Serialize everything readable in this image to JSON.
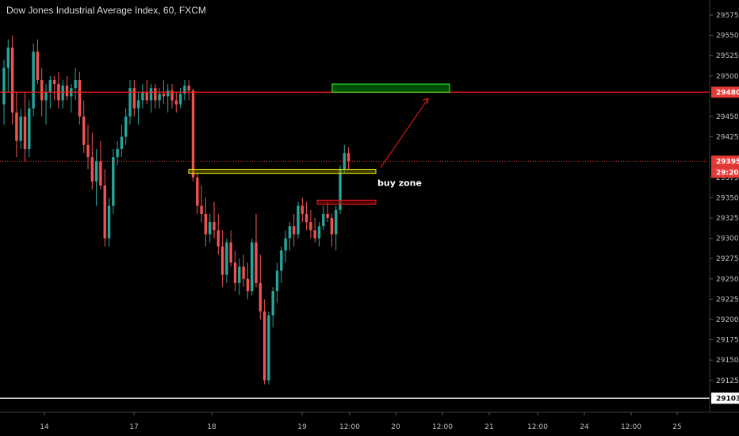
{
  "chart_title": "Dow Jones Industrial Average Index, 60, FXCM",
  "colors": {
    "background": "#000000",
    "up": "#26a69a",
    "down": "#ef5350",
    "resistance": "#ff1a1a",
    "buy_zone": "#ffff00",
    "target_box": "#00b300",
    "stop_box": "#ff1a1a",
    "support_line": "#ffffff",
    "price_badge": "#e53935",
    "axis_text": "#bfbfbf"
  },
  "annotation": {
    "buy_zone_label": "buy zone"
  },
  "badges": {
    "resistance_price": "29480",
    "current_price": "29395",
    "countdown": "29:20",
    "support_price": "29103"
  },
  "chart_data": {
    "type": "candlestick",
    "title": "Dow Jones Industrial Average Index, 60, FXCM",
    "ylim": [
      29103,
      29590
    ],
    "y_ticks": [
      29575,
      29550,
      29525,
      29500,
      29450,
      29425,
      29375,
      29350,
      29325,
      29300,
      29275,
      29250,
      29225,
      29200,
      29175,
      29150,
      29125
    ],
    "x_ticks": [
      "14",
      "17",
      "18",
      "19",
      "12:00",
      "20",
      "12:00",
      "21",
      "12:00",
      "24",
      "12:00",
      "25"
    ],
    "levels": {
      "resistance": 29480,
      "current": 29395,
      "support": 29103
    },
    "zones": {
      "target": [
        29480,
        29490
      ],
      "buy_zone": [
        29380,
        29385
      ],
      "stop": [
        29342,
        29347
      ]
    },
    "series": [
      {
        "name": "",
        "ohlc": [
          [
            29465,
            29520,
            29440,
            29510
          ],
          [
            29510,
            29545,
            29480,
            29535
          ],
          [
            29535,
            29550,
            29440,
            29455
          ],
          [
            29455,
            29480,
            29400,
            29420
          ],
          [
            29420,
            29460,
            29410,
            29450
          ],
          [
            29450,
            29480,
            29395,
            29410
          ],
          [
            29410,
            29470,
            29400,
            29460
          ],
          [
            29460,
            29540,
            29450,
            29530
          ],
          [
            29530,
            29545,
            29490,
            29495
          ],
          [
            29495,
            29510,
            29450,
            29470
          ],
          [
            29470,
            29490,
            29440,
            29480
          ],
          [
            29480,
            29500,
            29460,
            29495
          ],
          [
            29495,
            29500,
            29470,
            29490
          ],
          [
            29490,
            29505,
            29460,
            29470
          ],
          [
            29470,
            29495,
            29460,
            29488
          ],
          [
            29488,
            29500,
            29470,
            29475
          ],
          [
            29475,
            29490,
            29455,
            29485
          ],
          [
            29485,
            29510,
            29470,
            29495
          ],
          [
            29495,
            29505,
            29440,
            29450
          ],
          [
            29450,
            29470,
            29405,
            29415
          ],
          [
            29415,
            29440,
            29385,
            29400
          ],
          [
            29400,
            29430,
            29360,
            29370
          ],
          [
            29370,
            29410,
            29340,
            29395
          ],
          [
            29395,
            29420,
            29360,
            29365
          ],
          [
            29365,
            29385,
            29290,
            29300
          ],
          [
            29300,
            29350,
            29290,
            29340
          ],
          [
            29340,
            29410,
            29330,
            29400
          ],
          [
            29400,
            29420,
            29390,
            29410
          ],
          [
            29410,
            29440,
            29400,
            29425
          ],
          [
            29425,
            29460,
            29415,
            29450
          ],
          [
            29450,
            29495,
            29440,
            29485
          ],
          [
            29485,
            29495,
            29450,
            29460
          ],
          [
            29460,
            29480,
            29440,
            29470
          ],
          [
            29470,
            29490,
            29460,
            29480
          ],
          [
            29480,
            29495,
            29465,
            29470
          ],
          [
            29470,
            29490,
            29455,
            29485
          ],
          [
            29485,
            29490,
            29460,
            29470
          ],
          [
            29470,
            29485,
            29460,
            29478
          ],
          [
            29478,
            29495,
            29465,
            29475
          ],
          [
            29475,
            29490,
            29455,
            29482
          ],
          [
            29482,
            29490,
            29460,
            29470
          ],
          [
            29470,
            29480,
            29455,
            29465
          ],
          [
            29465,
            29485,
            29460,
            29478
          ],
          [
            29478,
            29495,
            29470,
            29488
          ],
          [
            29488,
            29495,
            29470,
            29482
          ],
          [
            29482,
            29484,
            29370,
            29375
          ],
          [
            29375,
            29380,
            29330,
            29340
          ],
          [
            29340,
            29365,
            29320,
            29330
          ],
          [
            29330,
            29350,
            29290,
            29305
          ],
          [
            29305,
            29330,
            29295,
            29320
          ],
          [
            29320,
            29345,
            29300,
            29310
          ],
          [
            29310,
            29330,
            29280,
            29290
          ],
          [
            29290,
            29310,
            29240,
            29255
          ],
          [
            29255,
            29300,
            29245,
            29295
          ],
          [
            29295,
            29310,
            29265,
            29270
          ],
          [
            29270,
            29285,
            29235,
            29245
          ],
          [
            29245,
            29275,
            29230,
            29265
          ],
          [
            29265,
            29280,
            29240,
            29250
          ],
          [
            29250,
            29270,
            29225,
            29235
          ],
          [
            29235,
            29300,
            29230,
            29295
          ],
          [
            29295,
            29330,
            29240,
            29245
          ],
          [
            29245,
            29280,
            29200,
            29210
          ],
          [
            29210,
            29225,
            29120,
            29125
          ],
          [
            29125,
            29210,
            29120,
            29205
          ],
          [
            29205,
            29240,
            29190,
            29235
          ],
          [
            29235,
            29270,
            29220,
            29260
          ],
          [
            29260,
            29290,
            29245,
            29285
          ],
          [
            29285,
            29310,
            29270,
            29300
          ],
          [
            29300,
            29320,
            29285,
            29315
          ],
          [
            29315,
            29330,
            29290,
            29305
          ],
          [
            29305,
            29345,
            29300,
            29340
          ],
          [
            29340,
            29350,
            29320,
            29330
          ],
          [
            29330,
            29345,
            29310,
            29320
          ],
          [
            29320,
            29335,
            29300,
            29310
          ],
          [
            29310,
            29325,
            29295,
            29300
          ],
          [
            29300,
            29320,
            29290,
            29315
          ],
          [
            29315,
            29340,
            29310,
            29330
          ],
          [
            29330,
            29345,
            29320,
            29325
          ],
          [
            29325,
            29330,
            29290,
            29305
          ],
          [
            29305,
            29340,
            29285,
            29335
          ],
          [
            29335,
            29390,
            29330,
            29385
          ],
          [
            29385,
            29415,
            29380,
            29405
          ],
          [
            29405,
            29412,
            29385,
            29395
          ]
        ]
      }
    ]
  }
}
